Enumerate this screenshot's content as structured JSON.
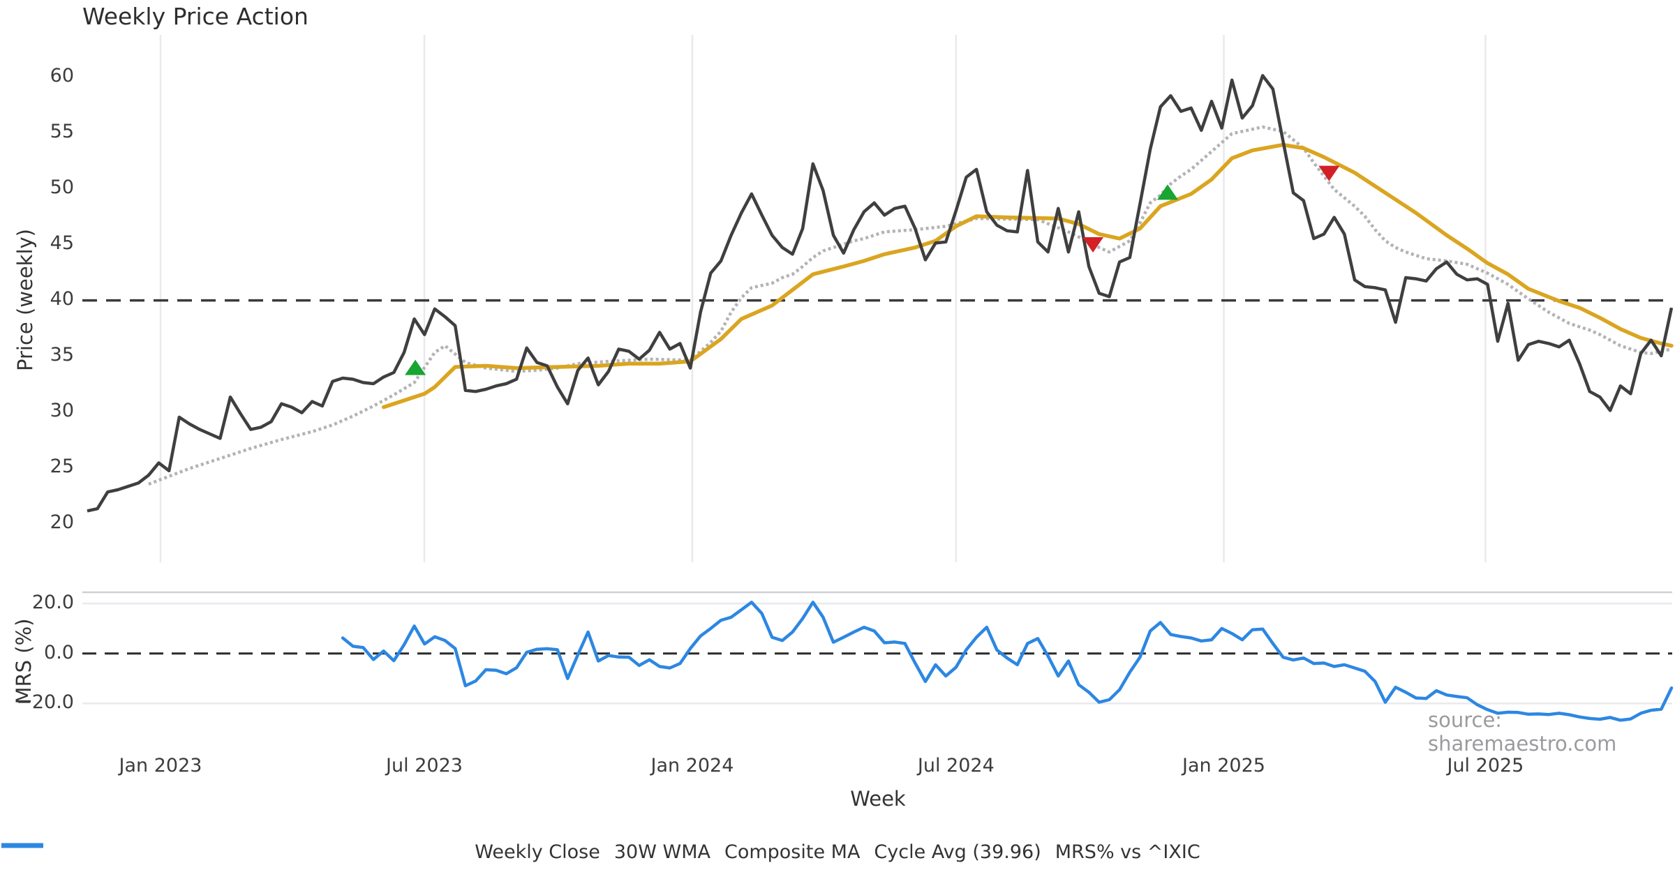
{
  "title": "Weekly Price Action",
  "watermark": "source: sharemaestro.com",
  "axes": {
    "price_ylabel": "Price (weekly)",
    "price_ticks": [
      60,
      55,
      50,
      45,
      40,
      35,
      30,
      25,
      20
    ],
    "mrs_ylabel": "MRS (%)",
    "mrs_ticks": [
      {
        "label": "20.0",
        "value": 20
      },
      {
        "label": "0.0",
        "value": 0
      },
      {
        "label": "−20.0",
        "value": -20
      }
    ],
    "xlabel": "Week",
    "x_ticks": [
      {
        "label": "Jan 2023",
        "week": 7.17
      },
      {
        "label": "Jul 2023",
        "week": 32.98
      },
      {
        "label": "Jan 2024",
        "week": 59.2
      },
      {
        "label": "Jul 2024",
        "week": 85.0
      },
      {
        "label": "Jan 2025",
        "week": 111.2
      },
      {
        "label": "Jul 2025",
        "week": 136.8
      }
    ]
  },
  "legend": [
    {
      "label": "Weekly Close",
      "style": "solid",
      "color": "#3f3f3f"
    },
    {
      "label": "30W WMA",
      "style": "solid-thick",
      "color": "#daa520"
    },
    {
      "label": "Composite MA",
      "style": "dotted",
      "color": "#b3b3b7"
    },
    {
      "label": "Cycle Avg (39.96)",
      "style": "dashed",
      "color": "#3a3a3a"
    },
    {
      "label": "MRS% vs ^IXIC",
      "style": "solid-thick",
      "color": "#2d87e2"
    }
  ],
  "colors": {
    "close": "#3f3f3f",
    "wma": "#daa520",
    "composite": "#b3b3b7",
    "cycle": "#3a3a3a",
    "mrs": "#2d87e2",
    "buy": "#18a532",
    "sell": "#d32027",
    "grid": "#e9e9ee",
    "panel_border": "#cfcfd4",
    "zero_dash": "#2a2a2a"
  },
  "chart_data": {
    "type": "line",
    "x_unit": "week_index",
    "weeks_total": 156,
    "panels": [
      {
        "name": "price",
        "ylim": [
          17.5,
          62.5
        ],
        "grid": "vertical-only",
        "cycle_avg": 39.96,
        "weekly_close": {
          "start_week": 0,
          "values": [
            21.1,
            21.3,
            22.8,
            23.0,
            23.3,
            23.6,
            24.3,
            25.4,
            24.7,
            29.5,
            28.9,
            28.4,
            28.0,
            27.6,
            31.3,
            29.8,
            28.4,
            28.6,
            29.1,
            30.7,
            30.4,
            29.9,
            30.9,
            30.5,
            32.7,
            33.0,
            32.9,
            32.6,
            32.5,
            33.1,
            33.5,
            35.3,
            38.3,
            36.9,
            39.2,
            38.5,
            37.7,
            31.9,
            31.8,
            32.0,
            32.3,
            32.5,
            32.9,
            35.7,
            34.4,
            34.1,
            32.2,
            30.7,
            33.7,
            34.8,
            32.4,
            33.6,
            35.6,
            35.4,
            34.7,
            35.5,
            37.1,
            35.6,
            36.1,
            33.9,
            38.9,
            42.4,
            43.5,
            45.8,
            47.8,
            49.5,
            47.6,
            45.8,
            44.7,
            44.1,
            46.4,
            52.2,
            49.8,
            45.8,
            44.2,
            46.3,
            47.9,
            48.7,
            47.6,
            48.2,
            48.4,
            46.4,
            43.6,
            45.1,
            45.2,
            48.0,
            51.0,
            51.7,
            47.9,
            46.7,
            46.2,
            46.1,
            51.6,
            45.2,
            44.3,
            48.2,
            44.3,
            47.9,
            43.0,
            40.6,
            40.3,
            43.4,
            43.8,
            48.6,
            53.5,
            57.3,
            58.3,
            56.9,
            57.2,
            55.2,
            57.8,
            55.4,
            59.7,
            56.3,
            57.4,
            60.1,
            58.9,
            54.2,
            49.6,
            48.9,
            45.5,
            45.9,
            47.4,
            45.9,
            41.8,
            41.2,
            41.1,
            40.9,
            38.0,
            42.0,
            41.9,
            41.7,
            42.8,
            43.4,
            42.3,
            41.8,
            41.9,
            41.4,
            36.3,
            39.7,
            34.6,
            36.0,
            36.3,
            36.1,
            35.8,
            36.4,
            34.3,
            31.8,
            31.3,
            30.1,
            32.3,
            31.6,
            35.2,
            36.4,
            35.0,
            39.3
          ]
        },
        "wma_30w": {
          "keyframes": [
            [
              29,
              30.4
            ],
            [
              31,
              31.0
            ],
            [
              33,
              31.6
            ],
            [
              34,
              32.2
            ],
            [
              36,
              34.0
            ],
            [
              39,
              34.1
            ],
            [
              42,
              33.9
            ],
            [
              46,
              34.0
            ],
            [
              50,
              34.1
            ],
            [
              53,
              34.3
            ],
            [
              56,
              34.3
            ],
            [
              59,
              34.5
            ],
            [
              62,
              36.5
            ],
            [
              64,
              38.3
            ],
            [
              67,
              39.5
            ],
            [
              69,
              40.9
            ],
            [
              71,
              42.3
            ],
            [
              74,
              43.0
            ],
            [
              76,
              43.5
            ],
            [
              78,
              44.1
            ],
            [
              81,
              44.7
            ],
            [
              83,
              45.3
            ],
            [
              85,
              46.6
            ],
            [
              87,
              47.5
            ],
            [
              90,
              47.4
            ],
            [
              95,
              47.3
            ],
            [
              97,
              46.8
            ],
            [
              99,
              45.9
            ],
            [
              101,
              45.5
            ],
            [
              103,
              46.4
            ],
            [
              105,
              48.4
            ],
            [
              108,
              49.5
            ],
            [
              110,
              50.8
            ],
            [
              112,
              52.7
            ],
            [
              114,
              53.4
            ],
            [
              117,
              53.9
            ],
            [
              119,
              53.6
            ],
            [
              121,
              52.8
            ],
            [
              124,
              51.4
            ],
            [
              126,
              50.2
            ],
            [
              128,
              49.0
            ],
            [
              130,
              47.8
            ],
            [
              133,
              45.8
            ],
            [
              135,
              44.6
            ],
            [
              137,
              43.3
            ],
            [
              139,
              42.3
            ],
            [
              141,
              41.0
            ],
            [
              144,
              39.9
            ],
            [
              146,
              39.3
            ],
            [
              148,
              38.4
            ],
            [
              150,
              37.4
            ],
            [
              152,
              36.6
            ],
            [
              154,
              36.1
            ],
            [
              155,
              35.9
            ]
          ]
        },
        "composite_ma": {
          "keyframes": [
            [
              6,
              23.5
            ],
            [
              8,
              24.2
            ],
            [
              10,
              24.9
            ],
            [
              13,
              25.8
            ],
            [
              16,
              26.7
            ],
            [
              19,
              27.5
            ],
            [
              22,
              28.2
            ],
            [
              24,
              28.8
            ],
            [
              26,
              29.6
            ],
            [
              28,
              30.5
            ],
            [
              30,
              31.5
            ],
            [
              32,
              32.6
            ],
            [
              34,
              35.3
            ],
            [
              35,
              35.9
            ],
            [
              37,
              34.4
            ],
            [
              39,
              33.9
            ],
            [
              42,
              33.6
            ],
            [
              44,
              33.7
            ],
            [
              46,
              33.9
            ],
            [
              48,
              34.3
            ],
            [
              51,
              34.5
            ],
            [
              55,
              34.7
            ],
            [
              59,
              34.6
            ],
            [
              61,
              36.2
            ],
            [
              62,
              37.2
            ],
            [
              63,
              38.9
            ],
            [
              64,
              40.2
            ],
            [
              65,
              41.1
            ],
            [
              67,
              41.5
            ],
            [
              68,
              42.0
            ],
            [
              69,
              42.3
            ],
            [
              70,
              43.0
            ],
            [
              71,
              43.8
            ],
            [
              72,
              44.4
            ],
            [
              74,
              45.0
            ],
            [
              75,
              45.3
            ],
            [
              76,
              45.5
            ],
            [
              78,
              46.1
            ],
            [
              81,
              46.3
            ],
            [
              84,
              46.6
            ],
            [
              87,
              47.3
            ],
            [
              93,
              47.2
            ],
            [
              96,
              46.1
            ],
            [
              98,
              45.2
            ],
            [
              99,
              44.7
            ],
            [
              100,
              44.3
            ],
            [
              102,
              45.3
            ],
            [
              103,
              46.9
            ],
            [
              104,
              48.7
            ],
            [
              105,
              49.4
            ],
            [
              106,
              50.4
            ],
            [
              107,
              51.1
            ],
            [
              108,
              51.7
            ],
            [
              110,
              53.3
            ],
            [
              112,
              54.9
            ],
            [
              115,
              55.5
            ],
            [
              117,
              55.1
            ],
            [
              119,
              53.6
            ],
            [
              120,
              52.3
            ],
            [
              121,
              51.1
            ],
            [
              122,
              49.9
            ],
            [
              124,
              48.4
            ],
            [
              125,
              47.5
            ],
            [
              126,
              46.3
            ],
            [
              127,
              45.3
            ],
            [
              128,
              44.7
            ],
            [
              129,
              44.3
            ],
            [
              130,
              44.0
            ],
            [
              131,
              43.7
            ],
            [
              133,
              43.5
            ],
            [
              135,
              43.2
            ],
            [
              137,
              42.4
            ],
            [
              139,
              41.4
            ],
            [
              141,
              40.1
            ],
            [
              143,
              38.9
            ],
            [
              145,
              37.9
            ],
            [
              147,
              37.3
            ],
            [
              148,
              36.9
            ],
            [
              150,
              35.9
            ],
            [
              152,
              35.3
            ],
            [
              153,
              35.2
            ],
            [
              155,
              35.6
            ]
          ]
        },
        "signals": {
          "buy": [
            [
              32.1,
              33.9
            ],
            [
              105.7,
              49.6
            ]
          ],
          "sell": [
            [
              98.4,
              45.0
            ],
            [
              121.5,
              51.4
            ]
          ]
        }
      },
      {
        "name": "mrs",
        "ylim": [
          -30.5,
          24.5
        ],
        "zero_line": 0,
        "gridlines": [
          20,
          -20
        ],
        "mrs_pct": {
          "start_week": 25,
          "values": [
            6.2,
            2.9,
            2.4,
            -2.4,
            1.0,
            -2.9,
            3.5,
            11.0,
            3.8,
            6.7,
            5.2,
            2.0,
            -12.9,
            -11.0,
            -6.5,
            -6.7,
            -8.1,
            -5.7,
            0.5,
            1.7,
            1.9,
            1.5,
            -10.0,
            -0.5,
            8.6,
            -3.0,
            -0.8,
            -1.4,
            -1.5,
            -4.8,
            -2.5,
            -5.2,
            -5.8,
            -4.0,
            2.0,
            7.0,
            10.0,
            13.3,
            14.5,
            17.5,
            20.5,
            16.0,
            6.5,
            5.2,
            8.6,
            14.0,
            20.5,
            14.5,
            4.5,
            6.5,
            8.6,
            10.5,
            9.0,
            4.3,
            4.6,
            4.0,
            -3.8,
            -11.2,
            -4.5,
            -9.0,
            -5.5,
            1.5,
            6.5,
            10.5,
            1.4,
            -1.8,
            -4.5,
            4.0,
            6.0,
            -1.0,
            -9.0,
            -3.0,
            -12.5,
            -15.5,
            -19.5,
            -18.5,
            -14.5,
            -7.5,
            -1.5,
            9.0,
            12.4,
            7.6,
            6.8,
            6.2,
            5.0,
            5.5,
            10.0,
            8.0,
            5.5,
            9.5,
            9.8,
            4.0,
            -1.5,
            -2.6,
            -1.8,
            -4.0,
            -3.8,
            -5.2,
            -4.5,
            -5.8,
            -7.1,
            -11.2,
            -19.5,
            -13.5,
            -15.5,
            -17.8,
            -18.0,
            -14.9,
            -16.6,
            -17.2,
            -17.7,
            -20.5,
            -22.5,
            -23.9,
            -23.5,
            -23.6,
            -24.3,
            -24.2,
            -24.4,
            -23.9,
            -24.5,
            -25.4,
            -26.0,
            -26.3,
            -25.6,
            -26.7,
            -26.2,
            -23.9,
            -22.7,
            -22.3,
            -13.8
          ]
        }
      }
    ]
  }
}
